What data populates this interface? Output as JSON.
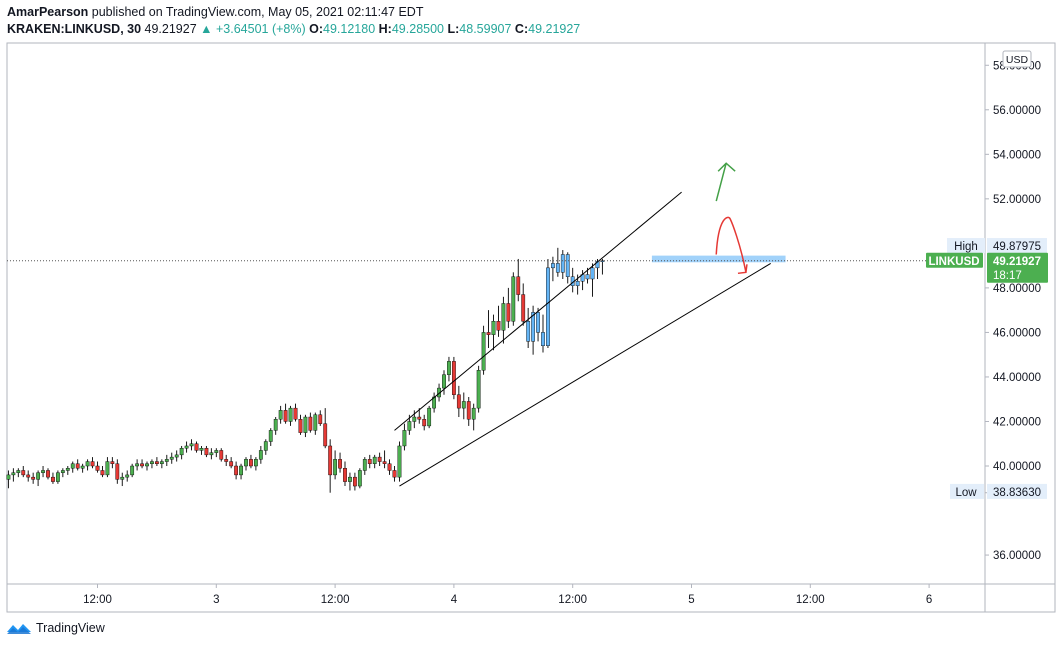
{
  "header": {
    "author": "AmarPearson",
    "published_text": "published on TradingView.com, May 05, 2021 02:11:47 EDT",
    "symbol": "KRAKEN:LINKUSD, 30",
    "last": "49.21927",
    "change": "▲ +3.64501 (+8%)",
    "o_key": "O:",
    "o_val": "49.12180",
    "h_key": "H:",
    "h_val": "49.28500",
    "l_key": "L:",
    "l_val": "48.59907",
    "c_key": "C:",
    "c_val": "49.21927"
  },
  "footer": {
    "brand": "TradingView",
    "logo_icon": "tradingview-logo-icon"
  },
  "colors": {
    "up": "#26a69a",
    "down": "#ef5350",
    "up_body": "#4caf50",
    "down_body": "#e53935",
    "highlight": "#64b5f6",
    "zone": "#90caf9",
    "green_arrow": "#43a047",
    "red_arrow": "#e53935",
    "price_tag": "#4caf50"
  },
  "chart_data": {
    "type": "candlestick",
    "currency_label": "USD",
    "ylim": [
      34.7,
      59.0
    ],
    "y_ticks": [
      "58.00000",
      "56.00000",
      "54.00000",
      "52.00000",
      "48.00000",
      "46.00000",
      "44.00000",
      "42.00000",
      "40.00000",
      "38.80000",
      "36.00000"
    ],
    "y_tick_values": [
      58,
      56,
      54,
      52,
      48,
      46,
      44,
      42,
      40,
      38.8,
      36
    ],
    "x_ticks": [
      "12:00",
      "3",
      "12:00",
      "4",
      "12:00",
      "5",
      "12:00",
      "6"
    ],
    "x_tick_bars": [
      18,
      42,
      66,
      90,
      114,
      138,
      162,
      186
    ],
    "high_label": "High",
    "high_value": "49.87975",
    "low_label": "Low",
    "low_value": "38.83630",
    "last_symbol": "LINKUSD",
    "last_value": "49.21927",
    "countdown": "18:17",
    "candles": [
      [
        39.4,
        39.8,
        39.0,
        39.6
      ],
      [
        39.6,
        39.9,
        39.3,
        39.7
      ],
      [
        39.7,
        39.9,
        39.5,
        39.8
      ],
      [
        39.8,
        40.0,
        39.5,
        39.6
      ],
      [
        39.6,
        39.8,
        39.3,
        39.5
      ],
      [
        39.5,
        39.7,
        39.2,
        39.4
      ],
      [
        39.4,
        39.8,
        39.1,
        39.7
      ],
      [
        39.7,
        40.0,
        39.5,
        39.8
      ],
      [
        39.8,
        39.9,
        39.4,
        39.5
      ],
      [
        39.5,
        39.7,
        39.2,
        39.3
      ],
      [
        39.3,
        39.8,
        39.2,
        39.7
      ],
      [
        39.7,
        39.9,
        39.5,
        39.8
      ],
      [
        39.8,
        40.0,
        39.6,
        39.9
      ],
      [
        39.9,
        40.2,
        39.7,
        40.1
      ],
      [
        40.1,
        40.3,
        39.8,
        39.9
      ],
      [
        39.9,
        40.1,
        39.7,
        40.0
      ],
      [
        40.0,
        40.3,
        39.8,
        40.2
      ],
      [
        40.2,
        40.4,
        39.9,
        40.0
      ],
      [
        40.0,
        40.2,
        39.7,
        39.8
      ],
      [
        39.8,
        40.0,
        39.5,
        39.6
      ],
      [
        39.6,
        40.4,
        39.5,
        40.2
      ],
      [
        40.2,
        40.4,
        39.9,
        40.1
      ],
      [
        40.1,
        40.3,
        39.2,
        39.4
      ],
      [
        39.4,
        39.7,
        39.1,
        39.5
      ],
      [
        39.5,
        39.8,
        39.3,
        39.6
      ],
      [
        39.6,
        40.1,
        39.5,
        40.0
      ],
      [
        40.0,
        40.3,
        39.8,
        40.1
      ],
      [
        40.1,
        40.3,
        39.9,
        40.0
      ],
      [
        40.0,
        40.2,
        39.8,
        40.1
      ],
      [
        40.1,
        40.3,
        39.9,
        40.2
      ],
      [
        40.2,
        40.4,
        40.0,
        40.1
      ],
      [
        40.1,
        40.3,
        39.9,
        40.2
      ],
      [
        40.2,
        40.5,
        40.0,
        40.3
      ],
      [
        40.3,
        40.6,
        40.1,
        40.4
      ],
      [
        40.4,
        40.7,
        40.2,
        40.5
      ],
      [
        40.5,
        40.9,
        40.3,
        40.8
      ],
      [
        40.8,
        41.1,
        40.6,
        40.9
      ],
      [
        40.9,
        41.2,
        40.7,
        41.0
      ],
      [
        41.0,
        41.1,
        40.6,
        40.7
      ],
      [
        40.7,
        40.9,
        40.5,
        40.8
      ],
      [
        40.8,
        40.9,
        40.4,
        40.5
      ],
      [
        40.5,
        40.8,
        40.3,
        40.6
      ],
      [
        40.6,
        40.8,
        40.4,
        40.7
      ],
      [
        40.7,
        40.8,
        40.2,
        40.3
      ],
      [
        40.3,
        40.5,
        40.0,
        40.2
      ],
      [
        40.2,
        40.4,
        39.9,
        40.0
      ],
      [
        40.0,
        40.2,
        39.4,
        39.6
      ],
      [
        39.6,
        40.1,
        39.4,
        40.0
      ],
      [
        40.0,
        40.4,
        39.8,
        40.3
      ],
      [
        40.3,
        40.5,
        39.9,
        40.0
      ],
      [
        40.0,
        40.4,
        39.8,
        40.3
      ],
      [
        40.3,
        40.9,
        40.1,
        40.7
      ],
      [
        40.7,
        41.2,
        40.5,
        41.1
      ],
      [
        41.1,
        41.7,
        40.9,
        41.6
      ],
      [
        41.6,
        42.2,
        41.4,
        42.1
      ],
      [
        42.1,
        42.7,
        41.9,
        42.5
      ],
      [
        42.5,
        42.8,
        41.9,
        42.0
      ],
      [
        42.0,
        42.7,
        41.8,
        42.6
      ],
      [
        42.6,
        42.8,
        42.0,
        42.1
      ],
      [
        42.1,
        42.3,
        41.4,
        41.5
      ],
      [
        41.5,
        42.3,
        41.3,
        42.2
      ],
      [
        42.2,
        42.4,
        41.5,
        41.6
      ],
      [
        41.6,
        42.4,
        41.4,
        42.3
      ],
      [
        42.3,
        42.5,
        41.8,
        41.9
      ],
      [
        41.9,
        42.6,
        40.8,
        40.9
      ],
      [
        40.9,
        41.2,
        38.8,
        39.6
      ],
      [
        39.6,
        40.7,
        39.4,
        40.3
      ],
      [
        40.3,
        40.6,
        39.7,
        39.9
      ],
      [
        39.9,
        40.2,
        39.1,
        39.3
      ],
      [
        39.3,
        39.7,
        38.9,
        39.5
      ],
      [
        39.5,
        39.7,
        38.9,
        39.1
      ],
      [
        39.1,
        39.9,
        39.0,
        39.8
      ],
      [
        39.8,
        40.4,
        39.6,
        40.3
      ],
      [
        40.3,
        40.5,
        39.9,
        40.1
      ],
      [
        40.1,
        40.5,
        39.9,
        40.4
      ],
      [
        40.4,
        40.6,
        40.0,
        40.2
      ],
      [
        40.2,
        40.7,
        39.9,
        40.1
      ],
      [
        40.1,
        40.3,
        39.6,
        39.8
      ],
      [
        39.8,
        40.0,
        39.3,
        39.5
      ],
      [
        39.5,
        41.1,
        39.3,
        40.9
      ],
      [
        40.9,
        41.9,
        40.7,
        41.6
      ],
      [
        41.6,
        42.3,
        41.4,
        42.0
      ],
      [
        42.0,
        42.5,
        41.7,
        42.2
      ],
      [
        42.2,
        42.6,
        41.9,
        42.1
      ],
      [
        42.1,
        42.3,
        41.6,
        41.8
      ],
      [
        41.8,
        42.7,
        41.7,
        42.6
      ],
      [
        42.6,
        43.3,
        42.4,
        43.1
      ],
      [
        43.1,
        43.7,
        42.9,
        43.5
      ],
      [
        43.5,
        44.3,
        43.2,
        44.1
      ],
      [
        44.1,
        44.9,
        43.8,
        44.7
      ],
      [
        44.7,
        44.9,
        43.0,
        43.2
      ],
      [
        43.2,
        43.6,
        42.2,
        42.6
      ],
      [
        42.6,
        43.3,
        42.1,
        42.9
      ],
      [
        42.9,
        43.1,
        41.8,
        42.1
      ],
      [
        42.1,
        42.8,
        41.6,
        42.6
      ],
      [
        42.6,
        44.5,
        42.4,
        44.3
      ],
      [
        44.3,
        46.3,
        44.1,
        46.0
      ],
      [
        46.0,
        47.0,
        45.3,
        45.9
      ],
      [
        45.9,
        46.8,
        45.2,
        46.5
      ],
      [
        46.5,
        47.2,
        45.8,
        46.1
      ],
      [
        46.1,
        47.6,
        45.5,
        47.3
      ],
      [
        47.3,
        48.0,
        46.2,
        46.5
      ],
      [
        46.5,
        48.7,
        46.3,
        48.5
      ],
      [
        48.5,
        49.3,
        47.4,
        47.7
      ],
      [
        47.7,
        48.2,
        46.3,
        46.5
      ],
      [
        46.5,
        47.1,
        45.3,
        45.6
      ],
      [
        45.6,
        47.2,
        45.0,
        46.9
      ],
      [
        46.9,
        47.1,
        45.6,
        46.0
      ],
      [
        46.0,
        46.8,
        45.1,
        45.4
      ],
      [
        45.4,
        49.3,
        45.3,
        48.9
      ],
      [
        48.9,
        49.4,
        48.3,
        49.1
      ],
      [
        49.1,
        49.8,
        48.5,
        48.7
      ],
      [
        48.7,
        49.7,
        48.4,
        49.5
      ],
      [
        49.5,
        49.6,
        48.2,
        48.5
      ],
      [
        48.5,
        48.9,
        47.8,
        48.1
      ],
      [
        48.1,
        48.6,
        47.7,
        48.3
      ],
      [
        48.3,
        48.8,
        47.9,
        48.6
      ],
      [
        48.6,
        48.9,
        48.2,
        48.4
      ],
      [
        48.4,
        49.1,
        47.6,
        48.9
      ],
      [
        48.9,
        49.3,
        48.4,
        49.2
      ],
      [
        49.2,
        49.3,
        48.6,
        49.22
      ]
    ],
    "highlight_bars": [
      105,
      106,
      107,
      108,
      109,
      110,
      111,
      112,
      113,
      114,
      115,
      116,
      117,
      118,
      119,
      120,
      121,
      122
    ],
    "trendlines": [
      {
        "from": [
          78,
          41.6
        ],
        "to": [
          136,
          52.3
        ]
      },
      {
        "from": [
          79,
          39.1
        ],
        "to": [
          154,
          49.1
        ]
      }
    ],
    "zone": {
      "from_bar": 130,
      "to_bar": 157,
      "low": 49.15,
      "high": 49.45
    },
    "green_arrow": {
      "from": [
        143,
        51.9
      ],
      "to": [
        145,
        53.6
      ]
    },
    "red_arrow": {
      "path": [
        [
          143,
          49.5
        ],
        [
          145,
          51.1
        ],
        [
          147,
          50.2
        ],
        [
          149,
          48.7
        ]
      ]
    }
  }
}
